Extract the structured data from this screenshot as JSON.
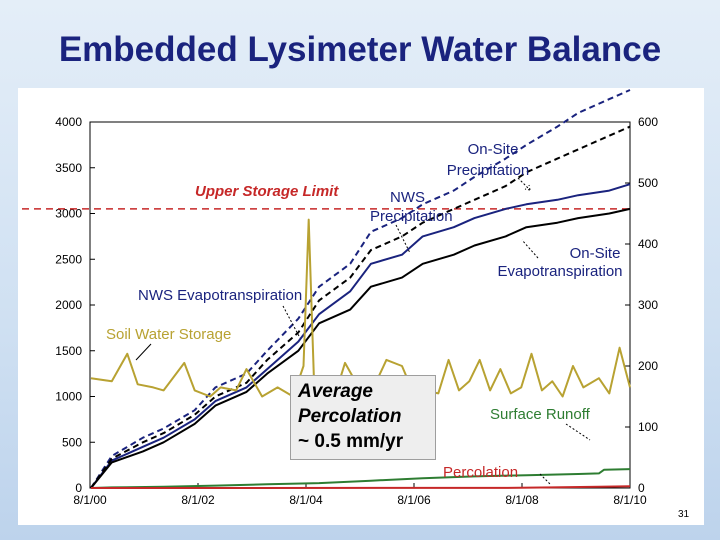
{
  "slide": {
    "title": "Embedded Lysimeter Water Balance",
    "page_number": "31"
  },
  "colors": {
    "slide_background": "#cfe0f2",
    "title": "#1a237e",
    "soil_water_storage": "#b8a232",
    "evapotranspiration": "#000000",
    "precipitation": "#1a237e",
    "surface_runoff": "#2e7d32",
    "percolation": "#c62828",
    "upper_storage_limit": "#c62828"
  },
  "annotations": {
    "onsite_precip": [
      "On-Site",
      "Precipitation"
    ],
    "nws_precip": [
      "NWS",
      "Precipitation"
    ],
    "onsite_et": [
      "On-Site",
      "Evapotranspiration"
    ],
    "nws_et": "NWS Evapotranspiration",
    "soil_storage": "Soil Water Storage",
    "surface_runoff": "Surface Runoff",
    "percolation": "Percolation",
    "upper_storage_limit": "Upper Storage Limit"
  },
  "percolation_box": {
    "line1": "Average",
    "line2": "Percolation",
    "line3": "~ 0.5 mm/yr"
  },
  "chart_data": {
    "type": "line",
    "title": "",
    "xlabel": "",
    "x_ticks": [
      "8/1/00",
      "8/1/02",
      "8/1/04",
      "8/1/06",
      "8/1/08",
      "8/1/10"
    ],
    "x_range": [
      2000.58,
      2011.0
    ],
    "left_axis": {
      "label": "",
      "range": [
        0,
        4000
      ],
      "ticks": [
        "0",
        "500",
        "1000",
        "1500",
        "2000",
        "2500",
        "3000",
        "3500",
        "4000"
      ]
    },
    "right_axis": {
      "label": "",
      "range": [
        0,
        600
      ],
      "ticks": [
        "0",
        "100",
        "200",
        "300",
        "400",
        "500",
        "600"
      ]
    },
    "grid": false,
    "reference_lines": [
      {
        "axis": "left",
        "value": 3050,
        "label": "Upper Storage Limit"
      }
    ],
    "series": [
      {
        "name": "On-Site Precipitation",
        "axis": "left",
        "style": "dashed",
        "color": "#1a237e",
        "x": [
          2000.6,
          2001.0,
          2001.6,
          2002.0,
          2002.6,
          2003.0,
          2003.6,
          2004.0,
          2004.6,
          2005.0,
          2005.6,
          2006.0,
          2006.6,
          2007.0,
          2007.6,
          2008.0,
          2008.6,
          2009.0,
          2009.6,
          2010.0,
          2010.6,
          2011.0
        ],
        "y": [
          0,
          350,
          550,
          650,
          850,
          1100,
          1250,
          1500,
          1850,
          2200,
          2450,
          2800,
          2950,
          3100,
          3250,
          3400,
          3600,
          3750,
          3950,
          4100,
          4250,
          4350
        ]
      },
      {
        "name": "NWS Precipitation",
        "axis": "left",
        "style": "solid",
        "color": "#1a237e",
        "x": [
          2000.6,
          2001.0,
          2001.6,
          2002.0,
          2002.6,
          2003.0,
          2003.6,
          2004.0,
          2004.6,
          2005.0,
          2005.6,
          2006.0,
          2006.6,
          2007.0,
          2007.6,
          2008.0,
          2008.6,
          2009.0,
          2009.6,
          2010.0,
          2010.6,
          2011.0
        ],
        "y": [
          0,
          300,
          450,
          550,
          750,
          950,
          1100,
          1300,
          1600,
          1900,
          2150,
          2450,
          2550,
          2750,
          2850,
          2950,
          3050,
          3100,
          3150,
          3200,
          3250,
          3320
        ]
      },
      {
        "name": "NWS Evapotranspiration",
        "axis": "left",
        "style": "dashed",
        "color": "#000000",
        "x": [
          2000.6,
          2001.0,
          2001.6,
          2002.0,
          2002.6,
          2003.0,
          2003.6,
          2004.0,
          2004.6,
          2005.0,
          2005.6,
          2006.0,
          2006.6,
          2007.0,
          2007.6,
          2008.0,
          2008.6,
          2009.0,
          2009.6,
          2010.0,
          2010.6,
          2011.0
        ],
        "y": [
          0,
          320,
          500,
          600,
          800,
          1000,
          1150,
          1400,
          1700,
          2050,
          2300,
          2600,
          2750,
          2900,
          3050,
          3150,
          3300,
          3450,
          3600,
          3700,
          3850,
          3950
        ]
      },
      {
        "name": "On-Site Evapotranspiration",
        "axis": "left",
        "style": "solid",
        "color": "#000000",
        "x": [
          2000.6,
          2001.0,
          2001.6,
          2002.0,
          2002.6,
          2003.0,
          2003.6,
          2004.0,
          2004.6,
          2005.0,
          2005.6,
          2006.0,
          2006.6,
          2007.0,
          2007.6,
          2008.0,
          2008.6,
          2009.0,
          2009.6,
          2010.0,
          2010.6,
          2011.0
        ],
        "y": [
          0,
          280,
          400,
          500,
          700,
          900,
          1050,
          1250,
          1500,
          1800,
          1950,
          2200,
          2300,
          2450,
          2550,
          2650,
          2750,
          2850,
          2900,
          2950,
          3000,
          3050
        ]
      },
      {
        "name": "Soil Water Storage",
        "axis": "right",
        "style": "solid",
        "color": "#b8a232",
        "x": [
          2000.6,
          2001.0,
          2001.3,
          2001.5,
          2001.8,
          2002.0,
          2002.4,
          2002.6,
          2002.9,
          2003.1,
          2003.4,
          2003.6,
          2003.9,
          2004.2,
          2004.5,
          2004.7,
          2004.8,
          2004.9,
          2005.0,
          2005.3,
          2005.5,
          2005.8,
          2006.0,
          2006.3,
          2006.6,
          2006.8,
          2007.0,
          2007.3,
          2007.5,
          2007.7,
          2007.9,
          2008.1,
          2008.3,
          2008.5,
          2008.7,
          2008.9,
          2009.1,
          2009.3,
          2009.5,
          2009.7,
          2009.9,
          2010.1,
          2010.4,
          2010.6,
          2010.8,
          2011.0
        ],
        "y": [
          180,
          175,
          220,
          170,
          165,
          160,
          205,
          160,
          150,
          165,
          160,
          195,
          150,
          165,
          150,
          200,
          440,
          180,
          165,
          150,
          205,
          160,
          155,
          210,
          200,
          160,
          160,
          155,
          210,
          160,
          175,
          210,
          160,
          195,
          155,
          165,
          220,
          160,
          175,
          150,
          200,
          165,
          180,
          155,
          230,
          165
        ]
      },
      {
        "name": "Surface Runoff",
        "axis": "right",
        "style": "solid",
        "color": "#2e7d32",
        "x": [
          2000.6,
          2001.0,
          2002.0,
          2003.0,
          2004.0,
          2005.0,
          2006.0,
          2007.0,
          2008.0,
          2008.5,
          2009.0,
          2009.5,
          2010.0,
          2010.4,
          2010.5,
          2011.0
        ],
        "y": [
          0,
          1,
          2,
          4,
          6,
          8,
          12,
          16,
          19,
          20,
          21,
          22,
          23,
          24,
          30,
          31
        ]
      },
      {
        "name": "Percolation",
        "axis": "right",
        "style": "solid",
        "color": "#c62828",
        "x": [
          2000.6,
          2008.6,
          2009.5,
          2010.4,
          2011.0
        ],
        "y": [
          0,
          0.2,
          1,
          2,
          3
        ]
      }
    ]
  }
}
